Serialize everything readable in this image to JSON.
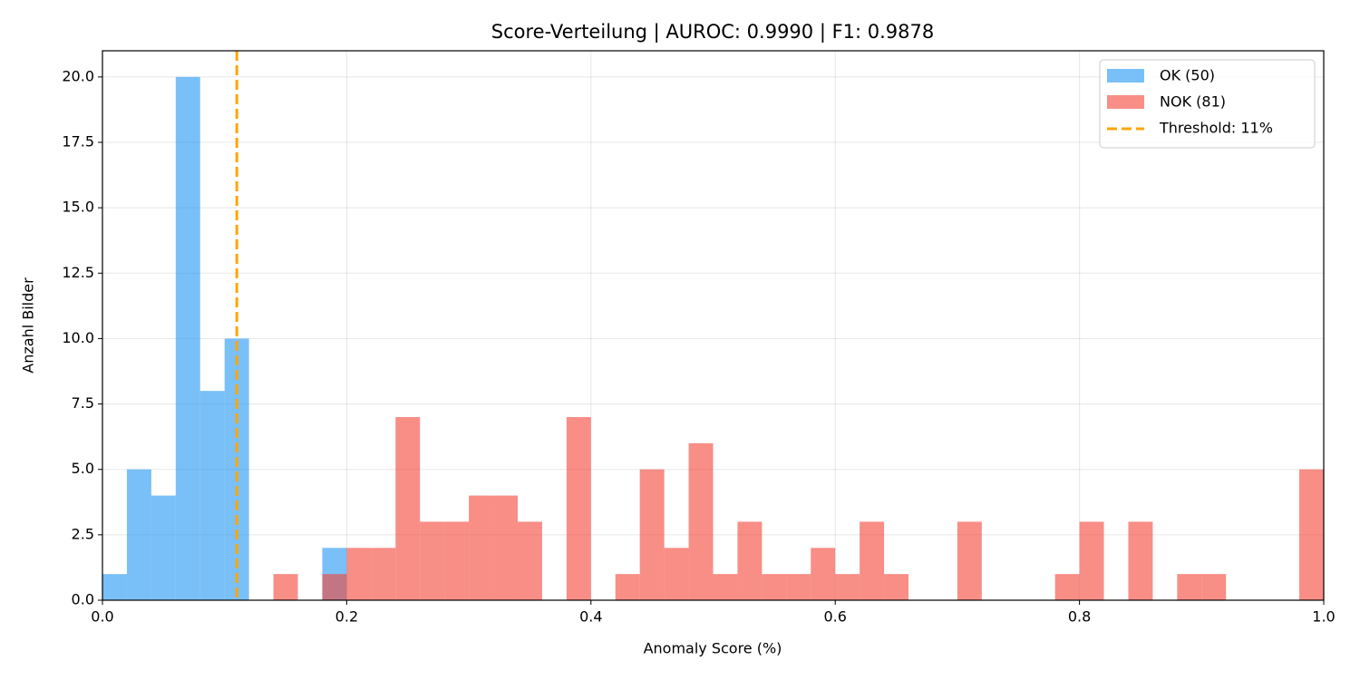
{
  "chart_data": {
    "type": "histogram",
    "title": "Score-Verteilung  |  AUROC: 0.9990  |  F1: 0.9878",
    "x_label": "Anomaly Score (%)",
    "y_label": "Anzahl Bilder",
    "bins": [
      0,
      0.02,
      0.04,
      0.06,
      0.08,
      0.1,
      0.12,
      0.14,
      0.16,
      0.18,
      0.2,
      0.22,
      0.24,
      0.26,
      0.28,
      0.3,
      0.32,
      0.34,
      0.36,
      0.38,
      0.4,
      0.42,
      0.44,
      0.46,
      0.48,
      0.5,
      0.52,
      0.54,
      0.56,
      0.58,
      0.6,
      0.62,
      0.64,
      0.66,
      0.68,
      0.7,
      0.72,
      0.74,
      0.76,
      0.78,
      0.8,
      0.82,
      0.84,
      0.86,
      0.88,
      0.9,
      0.92,
      0.94,
      0.96,
      0.98,
      1
    ],
    "series": [
      {
        "name": "OK (50)",
        "color": "#2196f3",
        "values": [
          1,
          5,
          4,
          20,
          8,
          10,
          0,
          0,
          0,
          2,
          0,
          0,
          0,
          0,
          0,
          0,
          0,
          0,
          0,
          0,
          0,
          0,
          0,
          0,
          0,
          0,
          0,
          0,
          0,
          0,
          0,
          0,
          0,
          0,
          0,
          0,
          0,
          0,
          0,
          0,
          0,
          0,
          0,
          0,
          0,
          0,
          0,
          0,
          0,
          0
        ]
      },
      {
        "name": "NOK (81)",
        "color": "#f44336",
        "values": [
          0,
          0,
          0,
          0,
          0,
          0,
          0,
          1,
          0,
          1,
          2,
          2,
          7,
          3,
          3,
          4,
          4,
          3,
          0,
          7,
          0,
          1,
          5,
          2,
          6,
          1,
          3,
          1,
          1,
          2,
          1,
          3,
          1,
          0,
          0,
          3,
          0,
          0,
          0,
          1,
          3,
          0,
          3,
          0,
          1,
          1,
          0,
          0,
          0,
          5
        ]
      }
    ],
    "alpha": 0.6,
    "threshold": {
      "value": 0.11,
      "label": "Threshold: 11%",
      "color": "#ffa500"
    },
    "xlim": [
      0,
      1
    ],
    "ylim": [
      0,
      21
    ],
    "xticks": [
      {
        "value": 0,
        "label": "0.0"
      },
      0.2,
      0.4,
      0.6,
      0.8,
      {
        "value": 1,
        "label": "1.0"
      }
    ],
    "yticks": [
      {
        "value": 0,
        "label": "0.0"
      },
      2.5,
      {
        "value": 5,
        "label": "5.0"
      },
      7.5,
      {
        "value": 10,
        "label": "10.0"
      },
      12.5,
      {
        "value": 15,
        "label": "15.0"
      },
      17.5,
      {
        "value": 20,
        "label": "20.0"
      }
    ],
    "grid": true,
    "legend": "upper right"
  }
}
